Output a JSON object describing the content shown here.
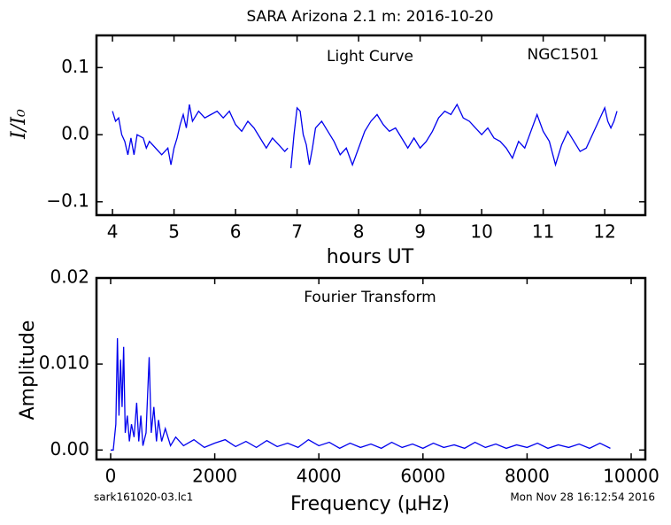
{
  "title": "SARA Arizona 2.1 m:  2016-10-20",
  "file_label": "sark161020-03.lc1",
  "timestamp": "Mon Nov 28 16:12:54 2016",
  "chart_data": [
    {
      "type": "line",
      "annotations": [
        "Light Curve",
        "NGC1501"
      ],
      "xlabel": "hours UT",
      "ylabel": "I/I₀",
      "color": "#0000ee",
      "xlim": [
        3.74,
        12.66
      ],
      "ylim": [
        -0.12,
        0.148
      ],
      "xticks": [
        4,
        5,
        6,
        7,
        8,
        9,
        10,
        11,
        12
      ],
      "yticks": [
        {
          "value": -0.1,
          "label": "−0.1"
        },
        {
          "value": 0,
          "label": "0.0"
        },
        0.1
      ],
      "x": [
        4.0,
        4.05,
        4.1,
        4.15,
        4.2,
        4.25,
        4.3,
        4.35,
        4.4,
        4.5,
        4.55,
        4.6,
        4.7,
        4.8,
        4.9,
        4.95,
        5.0,
        5.05,
        5.1,
        5.15,
        5.2,
        5.25,
        5.3,
        5.4,
        5.5,
        5.6,
        5.7,
        5.8,
        5.9,
        6.0,
        6.1,
        6.2,
        6.3,
        6.4,
        6.5,
        6.6,
        6.7,
        6.8,
        6.85,
        6.87,
        6.9,
        6.95,
        7.0,
        7.05,
        7.1,
        7.15,
        7.2,
        7.25,
        7.3,
        7.4,
        7.5,
        7.6,
        7.7,
        7.8,
        7.9,
        8.0,
        8.1,
        8.2,
        8.3,
        8.4,
        8.5,
        8.6,
        8.7,
        8.8,
        8.9,
        9.0,
        9.1,
        9.2,
        9.3,
        9.4,
        9.5,
        9.6,
        9.7,
        9.8,
        9.9,
        10.0,
        10.1,
        10.2,
        10.3,
        10.4,
        10.5,
        10.6,
        10.7,
        10.8,
        10.9,
        11.0,
        11.1,
        11.2,
        11.3,
        11.4,
        11.5,
        11.6,
        11.7,
        11.8,
        11.9,
        12.0,
        12.05,
        12.1,
        12.15,
        12.2
      ],
      "values": [
        0.035,
        0.02,
        0.025,
        0.0,
        -0.01,
        -0.03,
        -0.005,
        -0.03,
        0.0,
        -0.005,
        -0.02,
        -0.01,
        -0.02,
        -0.03,
        -0.02,
        -0.045,
        -0.02,
        -0.005,
        0.015,
        0.03,
        0.01,
        0.045,
        0.02,
        0.035,
        0.025,
        0.03,
        0.035,
        0.025,
        0.035,
        0.015,
        0.005,
        0.02,
        0.01,
        -0.005,
        -0.02,
        -0.005,
        -0.015,
        -0.025,
        -0.02,
        null,
        -0.05,
        0.0,
        0.04,
        0.035,
        0.0,
        -0.015,
        -0.045,
        -0.02,
        0.01,
        0.02,
        0.005,
        -0.01,
        -0.03,
        -0.02,
        -0.045,
        -0.02,
        0.005,
        0.02,
        0.03,
        0.015,
        0.005,
        0.01,
        -0.005,
        -0.02,
        -0.005,
        -0.02,
        -0.01,
        0.005,
        0.025,
        0.035,
        0.03,
        0.045,
        0.025,
        0.02,
        0.01,
        0.0,
        0.01,
        -0.005,
        -0.01,
        -0.02,
        -0.035,
        -0.01,
        -0.02,
        0.005,
        0.03,
        0.005,
        -0.01,
        -0.045,
        -0.015,
        0.005,
        -0.01,
        -0.025,
        -0.02,
        0.0,
        0.02,
        0.04,
        0.02,
        0.01,
        0.02,
        0.035
      ]
    },
    {
      "type": "line",
      "annotations": [
        "Fourier Transform"
      ],
      "xlabel": "Frequency (μHz)",
      "ylabel": "Amplitude",
      "color": "#0000ee",
      "xlim": [
        -272,
        10272
      ],
      "ylim": [
        -0.0011,
        0.02
      ],
      "xticks": [
        0,
        2000,
        4000,
        6000,
        8000,
        10000
      ],
      "yticks": [
        {
          "value": 0,
          "label": "0.00"
        },
        {
          "value": 0.01,
          "label": "0.010"
        },
        0.02
      ],
      "x": [
        0,
        50,
        100,
        130,
        160,
        190,
        220,
        250,
        280,
        320,
        360,
        400,
        450,
        500,
        540,
        580,
        620,
        680,
        740,
        780,
        830,
        880,
        920,
        980,
        1050,
        1150,
        1250,
        1400,
        1600,
        1800,
        2000,
        2200,
        2400,
        2600,
        2800,
        3000,
        3200,
        3400,
        3600,
        3800,
        4000,
        4200,
        4400,
        4600,
        4800,
        5000,
        5200,
        5400,
        5600,
        5800,
        6000,
        6200,
        6400,
        6600,
        6800,
        7000,
        7200,
        7400,
        7600,
        7800,
        8000,
        8200,
        8400,
        8600,
        8800,
        9000,
        9200,
        9400,
        9600
      ],
      "values": [
        0.0,
        0.0,
        0.003,
        0.013,
        0.004,
        0.0105,
        0.005,
        0.012,
        0.002,
        0.004,
        0.001,
        0.003,
        0.0015,
        0.0055,
        0.001,
        0.004,
        0.0005,
        0.002,
        0.0108,
        0.002,
        0.005,
        0.001,
        0.0035,
        0.001,
        0.0025,
        0.0005,
        0.0015,
        0.0005,
        0.0012,
        0.0003,
        0.0008,
        0.0012,
        0.0004,
        0.001,
        0.0003,
        0.0011,
        0.0004,
        0.0008,
        0.0003,
        0.0012,
        0.0005,
        0.0009,
        0.0002,
        0.0008,
        0.0003,
        0.0007,
        0.0002,
        0.0009,
        0.0003,
        0.0007,
        0.0002,
        0.0008,
        0.0003,
        0.0006,
        0.0002,
        0.0009,
        0.0003,
        0.0007,
        0.0002,
        0.0006,
        0.0003,
        0.0008,
        0.0002,
        0.0006,
        0.0003,
        0.0007,
        0.0002,
        0.0008,
        0.0002
      ]
    }
  ]
}
